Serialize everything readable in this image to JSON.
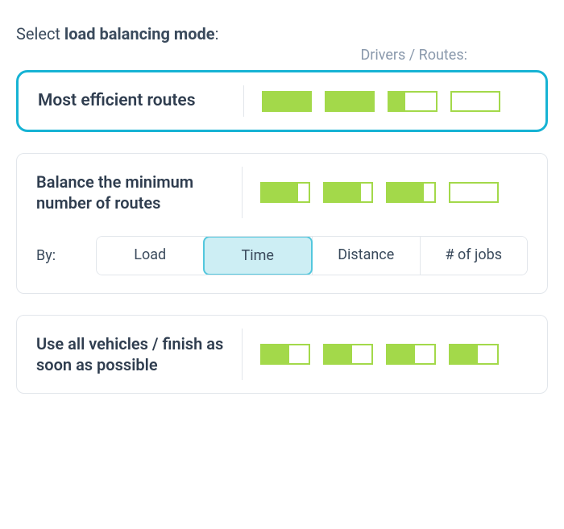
{
  "colors": {
    "text_primary": "#2f3d4f",
    "text_secondary": "#3a4a5c",
    "text_muted": "#8a99ac",
    "card_border": "#e2e6eb",
    "selected_border": "#16b3d4",
    "bar_color": "#a3d94a",
    "seg_active_bg": "#cdeef4",
    "seg_active_border": "#53c7dd",
    "background": "#ffffff"
  },
  "heading": {
    "prefix": "Select ",
    "bold": "load balancing mode",
    "suffix": ":"
  },
  "subheading": "Drivers / Routes:",
  "cards": [
    {
      "id": "most-efficient",
      "title": "Most efficient routes",
      "selected": true,
      "bars": [
        100,
        100,
        35,
        0
      ]
    },
    {
      "id": "balance-min",
      "title": "Balance the minimum number of routes",
      "selected": false,
      "bars": [
        78,
        78,
        78,
        0
      ],
      "by": {
        "label": "By:",
        "options": [
          "Load",
          "Time",
          "Distance",
          "# of jobs"
        ],
        "active_index": 1
      }
    },
    {
      "id": "use-all",
      "title": "Use all vehicles / finish as soon as possible",
      "selected": false,
      "bars": [
        58,
        58,
        58,
        58
      ]
    }
  ]
}
